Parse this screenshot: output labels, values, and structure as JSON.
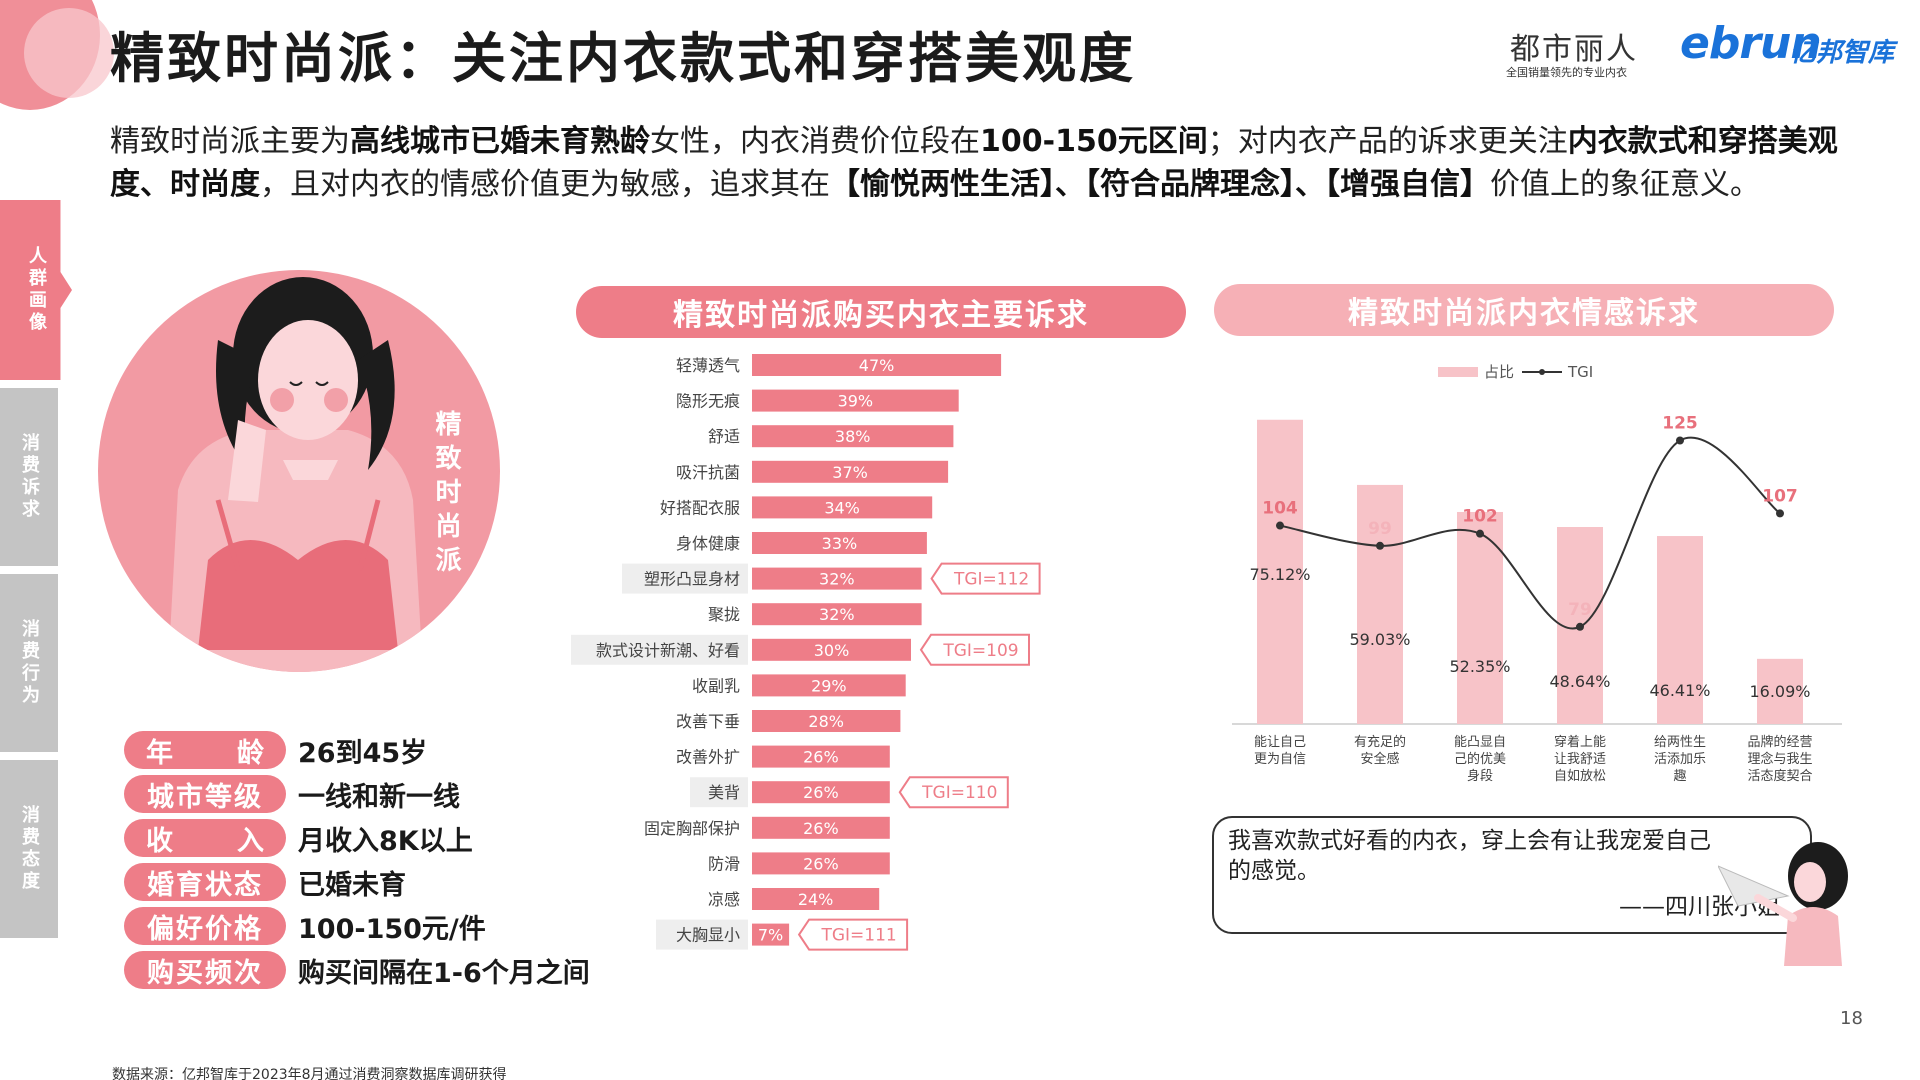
{
  "title": "精致时尚派：关注内衣款式和穿搭美观度",
  "logos": {
    "brand1": "都市丽人",
    "brand1_sub": "全国销量领先的专业内衣",
    "brand2_latin": "ebrun",
    "brand2_cn": "亿邦智库"
  },
  "intro": {
    "p1": "精致时尚派主要为",
    "b1": "高线城市已婚未育熟龄",
    "p2": "女性，内衣消费价位段在",
    "b2": "100-150元区间",
    "p3": "；对内衣产品的诉求更关注",
    "b3": "内衣款式和穿搭美观度、时尚度",
    "p4": "，且对内衣的情感价值更为敏感，追求其在",
    "b4": "【愉悦两性生活】、【符合品牌理念】、【增强自信】",
    "p5": "价值上的象征意义。"
  },
  "side_tabs": [
    "人群画像",
    "消费诉求",
    "消费行为",
    "消费态度"
  ],
  "persona": {
    "label": "精致时尚派",
    "attributes": [
      {
        "key": "年 龄",
        "value": "26到45岁",
        "spaced": true
      },
      {
        "key": "城市等级",
        "value": "一线和新一线",
        "spaced": false
      },
      {
        "key": "收 入",
        "value": "月收入8K以上",
        "spaced": true
      },
      {
        "key": "婚育状态",
        "value": "已婚未育",
        "spaced": false
      },
      {
        "key": "偏好价格",
        "value": "100-150元/件",
        "spaced": false
      },
      {
        "key": "购买频次",
        "value": "购买间隔在1-6个月之间",
        "spaced": false
      }
    ]
  },
  "chart_titles": {
    "bar": "精致时尚派购买内衣主要诉求",
    "line": "精致时尚派内衣情感诉求"
  },
  "chart_data": [
    {
      "type": "bar",
      "orientation": "horizontal",
      "title": "精致时尚派购买内衣主要诉求",
      "categories": [
        "轻薄透气",
        "隐形无痕",
        "舒适",
        "吸汗抗菌",
        "好搭配衣服",
        "身体健康",
        "塑形凸显身材",
        "聚拢",
        "款式设计新潮、好看",
        "收副乳",
        "改善下垂",
        "改善外扩",
        "美背",
        "固定胸部保护",
        "防滑",
        "凉感",
        "大胸显小"
      ],
      "values": [
        47,
        39,
        38,
        37,
        34,
        33,
        32,
        32,
        30,
        29,
        28,
        26,
        26,
        26,
        26,
        24,
        7
      ],
      "value_labels": [
        "47%",
        "39%",
        "38%",
        "37%",
        "34%",
        "33%",
        "32%",
        "32%",
        "30%",
        "29%",
        "28%",
        "26%",
        "26%",
        "26%",
        "26%",
        "24%",
        "7%"
      ],
      "unit": "%",
      "highlighted": [
        "塑形凸显身材",
        "款式设计新潮、好看",
        "美背",
        "大胸显小"
      ],
      "annotations": [
        {
          "category": "塑形凸显身材",
          "text": "TGI=112"
        },
        {
          "category": "款式设计新潮、好看",
          "text": "TGI=109"
        },
        {
          "category": "美背",
          "text": "TGI=110"
        },
        {
          "category": "大胸显小",
          "text": "TGI=111"
        }
      ],
      "bar_color": "#ee7d88"
    },
    {
      "type": "bar+line",
      "title": "精致时尚派内衣情感诉求",
      "categories": [
        "能让自己更为自信",
        "有充足的安全感",
        "能凸显自己的优美身段",
        "穿着上能让我舒适自如放松",
        "给两性生活添加乐趣",
        "品牌的经营理念与我生活态度契合"
      ],
      "category_lines": [
        [
          "能让自己",
          "更为自信"
        ],
        [
          "有充足的",
          "安全感"
        ],
        [
          "能凸显自",
          "己的优美",
          "身段"
        ],
        [
          "穿着上能",
          "让我舒适",
          "自如放松"
        ],
        [
          "给两性生",
          "活添加乐",
          "趣"
        ],
        [
          "品牌的经营",
          "理念与我生",
          "活态度契合"
        ]
      ],
      "series": [
        {
          "name": "占比",
          "kind": "bar",
          "values": [
            75.12,
            59.03,
            52.35,
            48.64,
            46.41,
            16.09
          ],
          "labels": [
            "75.12%",
            "59.03%",
            "52.35%",
            "48.64%",
            "46.41%",
            "16.09%"
          ],
          "color": "#f7c3c8"
        },
        {
          "name": "TGI",
          "kind": "line",
          "values": [
            104,
            99,
            102,
            79,
            125,
            107
          ],
          "labels": [
            "104",
            "99",
            "102",
            "79",
            "125",
            "107"
          ],
          "color": "#333333"
        }
      ],
      "tgi_label_colors": [
        "#e8707c",
        "#f4b3ba",
        "#e8707c",
        "#f4b3ba",
        "#e8707c",
        "#e8707c"
      ],
      "legend": [
        "占比",
        "TGI"
      ],
      "bar_ylim": [
        0,
        80
      ],
      "line_ylim": [
        55,
        135
      ]
    }
  ],
  "quote": {
    "text": "我喜欢款式好看的内衣，穿上会有让我宠爱自己的感觉。",
    "author": "——四川张小姐"
  },
  "page_number": "18",
  "source": "数据来源：亿邦智库于2023年8月通过消费洞察数据库调研获得"
}
